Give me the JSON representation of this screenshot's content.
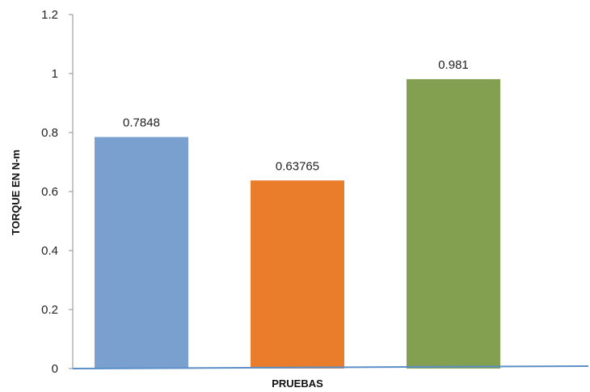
{
  "chart_data": {
    "type": "bar",
    "title": "",
    "xlabel": "PRUEBAS",
    "ylabel": "TORQUE  EN N-m",
    "ylim": [
      0,
      1.2
    ],
    "yticks": [
      "0",
      "0.2",
      "0.4",
      "0.6",
      "0.8",
      "1",
      "1.2"
    ],
    "categories": [
      "",
      "",
      ""
    ],
    "values": [
      0.7848,
      0.63765,
      0.981
    ],
    "value_labels": [
      "0.7848",
      "0.63765",
      "0.981"
    ],
    "bar_colors": [
      "#7aa0d0",
      "#ea7d2c",
      "#83a050"
    ],
    "axis_line_color": "#5b8fc7",
    "grid": false,
    "legend": "none"
  }
}
